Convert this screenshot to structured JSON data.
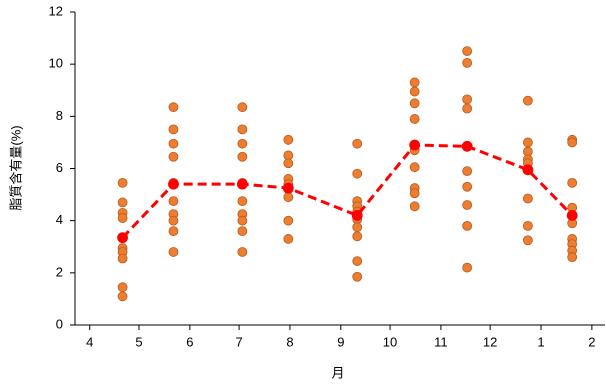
{
  "chart_data": {
    "type": "scatter",
    "xlabel": "月",
    "ylabel": "脂質含有量(%)",
    "xlim": [
      -9,
      314
    ],
    "ylim": [
      0,
      12
    ],
    "yticks": [
      0,
      2,
      4,
      6,
      8,
      10,
      12
    ],
    "xticks": [
      {
        "value": 0,
        "label": "4"
      },
      {
        "value": 30,
        "label": "5"
      },
      {
        "value": 61,
        "label": "6"
      },
      {
        "value": 91,
        "label": "7"
      },
      {
        "value": 122,
        "label": "8"
      },
      {
        "value": 153,
        "label": "9"
      },
      {
        "value": 183,
        "label": "10"
      },
      {
        "value": 214,
        "label": "11"
      },
      {
        "value": 244,
        "label": "12"
      },
      {
        "value": 275,
        "label": "1"
      },
      {
        "value": 306,
        "label": "2"
      }
    ],
    "series": [
      {
        "color": "#ed7d31",
        "marker": "circle",
        "x": [
          20,
          20,
          20,
          20,
          20,
          20,
          20,
          20,
          20,
          20,
          51,
          51,
          51,
          51,
          51,
          51,
          51,
          51,
          51,
          51,
          51,
          93,
          93,
          93,
          93,
          93,
          93,
          93,
          93,
          93,
          93,
          93,
          121,
          121,
          121,
          121,
          121,
          121,
          121,
          121,
          121,
          163,
          163,
          163,
          163,
          163,
          163,
          163,
          163,
          163,
          163,
          198,
          198,
          198,
          198,
          198,
          198,
          198,
          198,
          198,
          198,
          230,
          230,
          230,
          230,
          230,
          230,
          230,
          230,
          230,
          230,
          267,
          267,
          267,
          267,
          267,
          267,
          267,
          267,
          267,
          294,
          294,
          294,
          294,
          294,
          294,
          294,
          294,
          294
        ],
        "values": [
          5.45,
          4.7,
          4.3,
          4.1,
          3.35,
          2.95,
          2.8,
          2.55,
          1.45,
          1.1,
          8.35,
          7.5,
          6.95,
          6.45,
          5.45,
          5.4,
          4.75,
          4.25,
          4.0,
          3.6,
          2.8,
          8.35,
          7.5,
          6.95,
          6.45,
          5.45,
          5.4,
          4.75,
          4.25,
          4.0,
          3.6,
          2.8,
          7.1,
          6.5,
          6.2,
          5.6,
          5.4,
          5.2,
          4.9,
          4.0,
          3.3,
          6.95,
          5.8,
          4.75,
          4.55,
          4.35,
          4.05,
          3.75,
          3.4,
          2.45,
          1.85,
          9.3,
          8.95,
          8.5,
          7.9,
          6.85,
          6.7,
          6.05,
          5.25,
          5.05,
          4.55,
          10.5,
          10.05,
          8.65,
          8.3,
          6.85,
          5.9,
          5.3,
          4.6,
          3.8,
          2.2,
          8.6,
          7.0,
          6.65,
          6.35,
          6.2,
          5.95,
          4.85,
          3.8,
          3.25,
          7.1,
          7.0,
          5.45,
          4.5,
          3.9,
          3.3,
          3.1,
          2.85,
          2.6
        ]
      },
      {
        "color": "#ff0000",
        "marker": "circle",
        "line": "dashed",
        "x": [
          20,
          51,
          93,
          121,
          163,
          198,
          230,
          267,
          294
        ],
        "values": [
          3.35,
          5.4,
          5.4,
          5.25,
          4.2,
          6.9,
          6.85,
          5.95,
          4.2
        ]
      }
    ]
  }
}
